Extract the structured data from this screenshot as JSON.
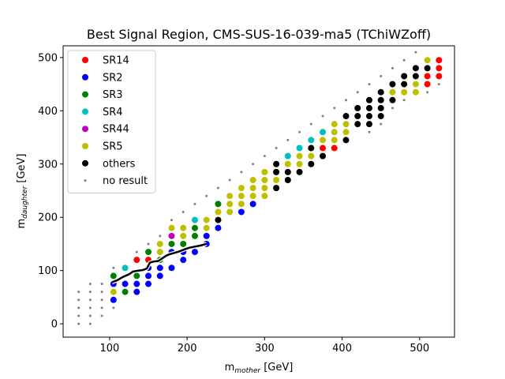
{
  "chart_data": {
    "type": "scatter",
    "title": "Best Signal Region, CMS-SUS-16-039-ma5 (TChiWZoff)",
    "xlabel": {
      "main": "m",
      "sub": "mother",
      "unit": " [GeV]"
    },
    "ylabel": {
      "main": "m",
      "sub": "daughter",
      "unit": " [GeV]"
    },
    "xlim": [
      40,
      545
    ],
    "ylim": [
      -25,
      522
    ],
    "xticks": [
      100,
      200,
      300,
      400,
      500
    ],
    "yticks": [
      0,
      100,
      200,
      300,
      400,
      500
    ],
    "legend_position": "top-left",
    "grid": false,
    "series": [
      {
        "name": "SR14",
        "color": "#ff0000",
        "marker": "dot",
        "points": [
          [
            135,
            120
          ],
          [
            150,
            120
          ],
          [
            375,
            330
          ],
          [
            390,
            330
          ],
          [
            510,
            450
          ],
          [
            510,
            465
          ],
          [
            525,
            495
          ],
          [
            525,
            480
          ],
          [
            525,
            465
          ]
        ]
      },
      {
        "name": "SR2",
        "color": "#0000ff",
        "marker": "dot",
        "points": [
          [
            105,
            45
          ],
          [
            105,
            75
          ],
          [
            120,
            75
          ],
          [
            135,
            60
          ],
          [
            135,
            75
          ],
          [
            150,
            75
          ],
          [
            150,
            90
          ],
          [
            165,
            90
          ],
          [
            165,
            105
          ],
          [
            180,
            105
          ],
          [
            180,
            135
          ],
          [
            195,
            120
          ],
          [
            210,
            135
          ],
          [
            225,
            150
          ],
          [
            225,
            165
          ],
          [
            240,
            180
          ],
          [
            270,
            210
          ],
          [
            285,
            225
          ],
          [
            150,
            105
          ],
          [
            195,
            135
          ]
        ]
      },
      {
        "name": "SR3",
        "color": "#008000",
        "marker": "dot",
        "points": [
          [
            105,
            90
          ],
          [
            120,
            60
          ],
          [
            135,
            90
          ],
          [
            150,
            135
          ],
          [
            165,
            120
          ],
          [
            180,
            150
          ],
          [
            195,
            150
          ],
          [
            210,
            165
          ],
          [
            210,
            180
          ],
          [
            240,
            225
          ]
        ]
      },
      {
        "name": "SR4",
        "color": "#00bfbf",
        "marker": "dot",
        "points": [
          [
            120,
            105
          ],
          [
            210,
            195
          ],
          [
            330,
            315
          ],
          [
            345,
            330
          ],
          [
            360,
            345
          ],
          [
            375,
            360
          ]
        ]
      },
      {
        "name": "SR44",
        "color": "#bf00bf",
        "marker": "dot",
        "points": [
          [
            180,
            165
          ]
        ]
      },
      {
        "name": "SR5",
        "color": "#bfbf00",
        "marker": "dot",
        "points": [
          [
            105,
            60
          ],
          [
            165,
            135
          ],
          [
            165,
            150
          ],
          [
            180,
            180
          ],
          [
            195,
            165
          ],
          [
            195,
            180
          ],
          [
            225,
            180
          ],
          [
            225,
            195
          ],
          [
            240,
            195
          ],
          [
            240,
            210
          ],
          [
            255,
            210
          ],
          [
            255,
            225
          ],
          [
            255,
            240
          ],
          [
            270,
            225
          ],
          [
            270,
            240
          ],
          [
            270,
            255
          ],
          [
            285,
            240
          ],
          [
            285,
            255
          ],
          [
            285,
            270
          ],
          [
            300,
            240
          ],
          [
            300,
            255
          ],
          [
            300,
            270
          ],
          [
            300,
            285
          ],
          [
            315,
            270
          ],
          [
            315,
            285
          ],
          [
            330,
            300
          ],
          [
            345,
            300
          ],
          [
            345,
            315
          ],
          [
            360,
            315
          ],
          [
            360,
            330
          ],
          [
            375,
            345
          ],
          [
            390,
            345
          ],
          [
            390,
            360
          ],
          [
            390,
            375
          ],
          [
            405,
            360
          ],
          [
            405,
            375
          ],
          [
            465,
            435
          ],
          [
            480,
            435
          ],
          [
            495,
            435
          ],
          [
            495,
            450
          ],
          [
            510,
            495
          ]
        ]
      },
      {
        "name": "others",
        "color": "#000000",
        "marker": "dot",
        "points": [
          [
            240,
            195
          ],
          [
            315,
            255
          ],
          [
            315,
            285
          ],
          [
            315,
            300
          ],
          [
            330,
            270
          ],
          [
            330,
            285
          ],
          [
            345,
            285
          ],
          [
            360,
            300
          ],
          [
            360,
            330
          ],
          [
            375,
            315
          ],
          [
            405,
            345
          ],
          [
            405,
            390
          ],
          [
            420,
            375
          ],
          [
            420,
            390
          ],
          [
            420,
            405
          ],
          [
            435,
            375
          ],
          [
            435,
            390
          ],
          [
            435,
            405
          ],
          [
            435,
            420
          ],
          [
            450,
            390
          ],
          [
            450,
            405
          ],
          [
            450,
            420
          ],
          [
            450,
            435
          ],
          [
            465,
            420
          ],
          [
            465,
            450
          ],
          [
            480,
            450
          ],
          [
            480,
            465
          ],
          [
            495,
            465
          ],
          [
            495,
            480
          ],
          [
            510,
            480
          ]
        ]
      },
      {
        "name": "no result",
        "color": "#808080",
        "marker": "small",
        "points": [
          [
            60,
            0
          ],
          [
            60,
            15
          ],
          [
            60,
            30
          ],
          [
            60,
            45
          ],
          [
            60,
            60
          ],
          [
            75,
            0
          ],
          [
            75,
            15
          ],
          [
            75,
            30
          ],
          [
            75,
            45
          ],
          [
            75,
            60
          ],
          [
            75,
            75
          ],
          [
            90,
            15
          ],
          [
            90,
            30
          ],
          [
            90,
            45
          ],
          [
            90,
            60
          ],
          [
            90,
            75
          ],
          [
            105,
            30
          ],
          [
            105,
            105
          ],
          [
            120,
            90
          ],
          [
            135,
            135
          ],
          [
            150,
            150
          ],
          [
            165,
            165
          ],
          [
            180,
            195
          ],
          [
            195,
            210
          ],
          [
            210,
            225
          ],
          [
            225,
            240
          ],
          [
            240,
            255
          ],
          [
            255,
            270
          ],
          [
            270,
            285
          ],
          [
            285,
            300
          ],
          [
            300,
            315
          ],
          [
            315,
            330
          ],
          [
            330,
            345
          ],
          [
            345,
            360
          ],
          [
            360,
            375
          ],
          [
            375,
            390
          ],
          [
            390,
            405
          ],
          [
            405,
            420
          ],
          [
            420,
            435
          ],
          [
            435,
            450
          ],
          [
            450,
            465
          ],
          [
            465,
            480
          ],
          [
            480,
            495
          ],
          [
            495,
            510
          ],
          [
            510,
            435
          ],
          [
            525,
            450
          ],
          [
            435,
            360
          ],
          [
            450,
            375
          ],
          [
            465,
            405
          ],
          [
            480,
            420
          ]
        ]
      }
    ],
    "exclusion_line": {
      "color": "#000000",
      "points": [
        [
          103,
          78
        ],
        [
          110,
          82
        ],
        [
          117,
          88
        ],
        [
          125,
          93
        ],
        [
          130,
          98
        ],
        [
          137,
          100
        ],
        [
          143,
          101
        ],
        [
          148,
          104
        ],
        [
          152,
          115
        ],
        [
          157,
          117
        ],
        [
          163,
          118
        ],
        [
          167,
          122
        ],
        [
          173,
          128
        ],
        [
          178,
          131
        ],
        [
          183,
          133
        ],
        [
          190,
          136
        ],
        [
          197,
          140
        ],
        [
          203,
          143
        ],
        [
          210,
          145
        ],
        [
          217,
          147
        ],
        [
          225,
          150
        ]
      ]
    }
  }
}
